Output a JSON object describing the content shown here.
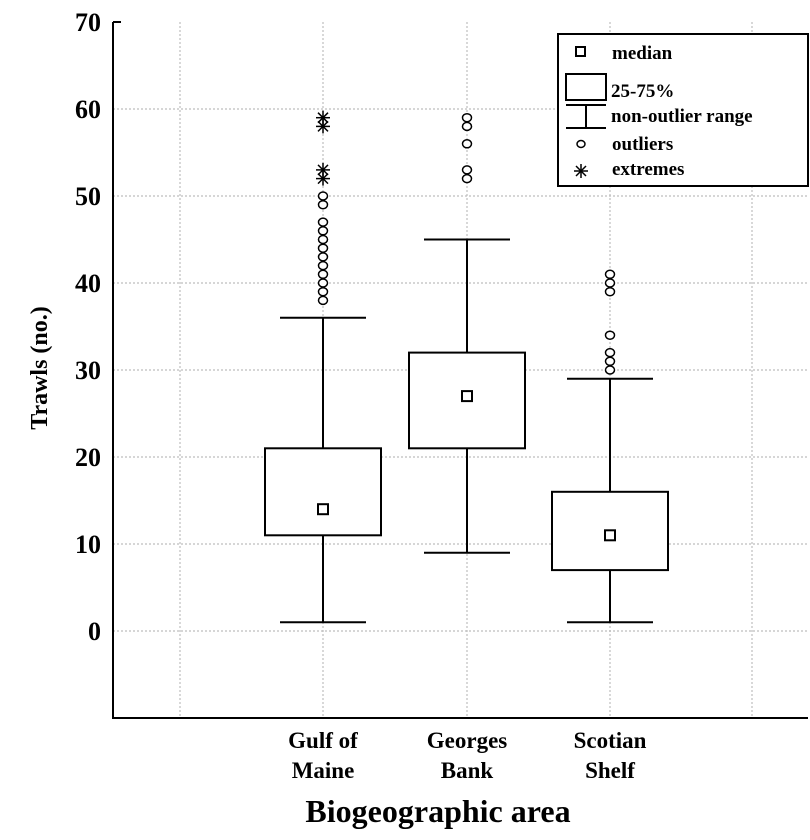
{
  "chart_data": {
    "type": "box",
    "xlabel": "Biogeographic area",
    "ylabel": "Trawls (no.)",
    "ylim": [
      -10,
      70
    ],
    "y_ticks": [
      0,
      10,
      20,
      30,
      40,
      50,
      60,
      70
    ],
    "grid": true,
    "legend_position": "top-right",
    "legend": {
      "median": "median",
      "box": "25-75%",
      "whisker": "non-outlier range",
      "outliers": "outliers",
      "extremes": "extremes"
    },
    "categories": [
      [
        "Gulf of",
        "Maine"
      ],
      [
        "Georges",
        "Bank"
      ],
      [
        "Scotian",
        "Shelf"
      ]
    ],
    "series": [
      {
        "median": 14,
        "q1": 11,
        "q3": 21,
        "min": 1,
        "max": 36,
        "outliers": [
          38,
          39,
          40,
          41,
          42,
          43,
          44,
          45,
          46,
          47,
          49,
          50
        ],
        "extremes": [
          52,
          53,
          58,
          59
        ]
      },
      {
        "median": 27,
        "q1": 21,
        "q3": 32,
        "min": 9,
        "max": 45,
        "outliers": [
          52,
          53,
          56,
          58,
          59
        ],
        "extremes": []
      },
      {
        "median": 11,
        "q1": 7,
        "q3": 16,
        "min": 1,
        "max": 29,
        "outliers": [
          30,
          31,
          32,
          34,
          39,
          40,
          41
        ],
        "extremes": []
      }
    ]
  }
}
